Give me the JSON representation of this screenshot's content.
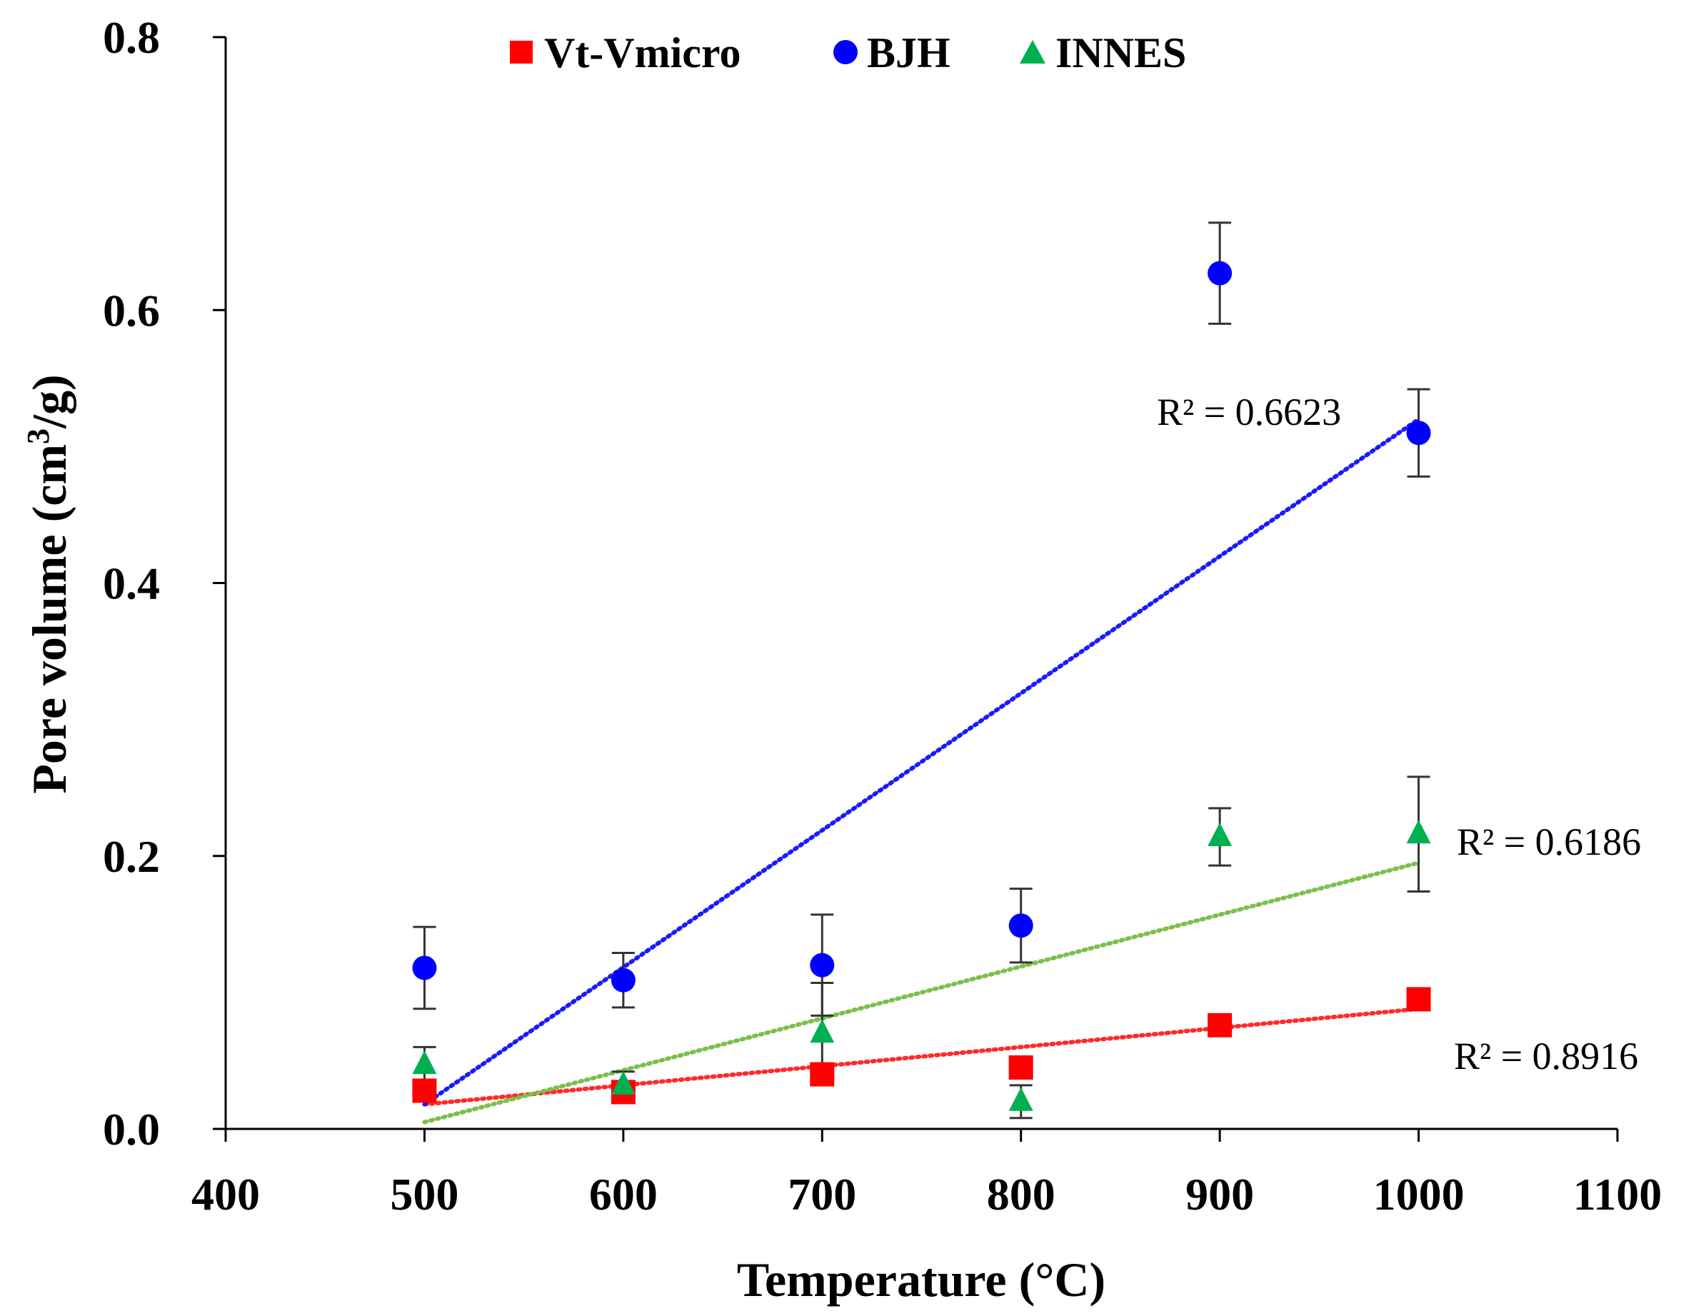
{
  "chart_data": {
    "type": "scatter",
    "title": "",
    "xlabel": "Temperature (°C)",
    "ylabel_main": "Pore volume (cm",
    "ylabel_sup": "3",
    "ylabel_end": "/g)",
    "xlim": [
      400,
      1100
    ],
    "ylim": [
      0.0,
      0.8
    ],
    "xticks": [
      400,
      500,
      600,
      700,
      800,
      900,
      1000,
      1100
    ],
    "yticks": [
      0.0,
      0.2,
      0.4,
      0.6,
      0.8
    ],
    "ytick_labels": [
      "0.0",
      "0.2",
      "0.4",
      "0.6",
      "0.8"
    ],
    "grid": false,
    "legend_position": "top",
    "series": [
      {
        "name": "Vt-Vmicro",
        "marker": "square",
        "color": "#ff0000",
        "trend_color": "#ff2a2a",
        "x": [
          500,
          600,
          700,
          800,
          900,
          1000
        ],
        "y": [
          0.028,
          0.027,
          0.04,
          0.045,
          0.076,
          0.095
        ],
        "err": [
          0,
          0,
          0,
          0,
          0,
          0
        ],
        "trendline": {
          "x": [
            500,
            1000
          ],
          "y": [
            0.018,
            0.088
          ]
        },
        "r2_label": "R² = 0.8916"
      },
      {
        "name": "BJH",
        "marker": "circle",
        "color": "#0000ff",
        "trend_color": "#1a1aff",
        "x": [
          500,
          600,
          700,
          800,
          900,
          1000
        ],
        "y": [
          0.118,
          0.109,
          0.12,
          0.149,
          0.627,
          0.51
        ],
        "err": [
          0.03,
          0.02,
          0.037,
          0.027,
          0.037,
          0.032
        ],
        "trendline": {
          "x": [
            500,
            1000
          ],
          "y": [
            0.018,
            0.52
          ]
        },
        "r2_label": "R² = 0.6623"
      },
      {
        "name": "INNES",
        "marker": "triangle",
        "color": "#00b050",
        "trend_color": "#7cc04a",
        "x": [
          500,
          600,
          700,
          800,
          900,
          1000
        ],
        "y": [
          0.047,
          0.032,
          0.07,
          0.02,
          0.214,
          0.216
        ],
        "err": [
          0.013,
          0.01,
          0.037,
          0.012,
          0.021,
          0.042
        ],
        "trendline": {
          "x": [
            500,
            1000
          ],
          "y": [
            0.005,
            0.195
          ]
        },
        "r2_label": "R² = 0.6186"
      }
    ]
  }
}
